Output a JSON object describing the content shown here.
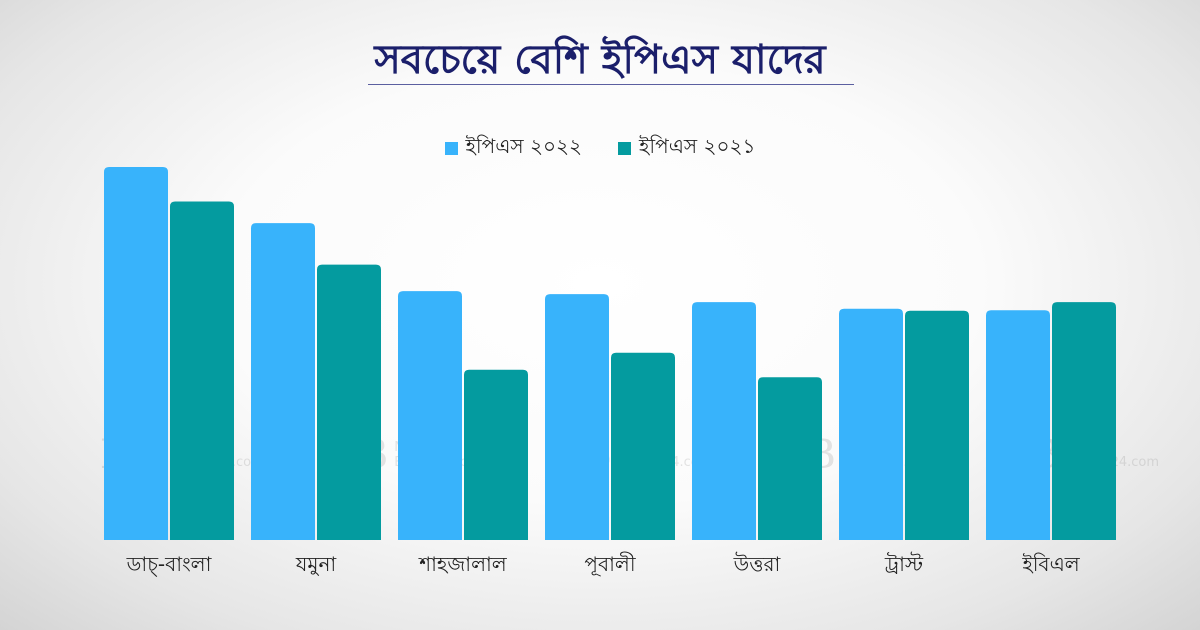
{
  "title": "সবচেয়ে বেশি ইপিএস যাদের",
  "watermark": {
    "mark": "NB",
    "line1": "News",
    "line2": "Bangla24.com"
  },
  "colors": {
    "series_2022": "#38b3fb",
    "series_2021": "#049b9f"
  },
  "chart_data": {
    "type": "bar",
    "title": "সবচেয়ে বেশি ইপিএস যাদের",
    "categories": [
      "ডাচ্-বাংলা",
      "যমুনা",
      "শাহজালাল",
      "পূবালী",
      "উত্তরা",
      "ট্রাস্ট",
      "ইবিএল"
    ],
    "series": [
      {
        "name": "ইপিএস ২০২২",
        "values": [
          7.45,
          6.33,
          4.97,
          4.91,
          4.75,
          4.62,
          4.59
        ]
      },
      {
        "name": "ইপিএস ২০২১",
        "values": [
          6.76,
          5.5,
          3.4,
          3.74,
          3.25,
          4.58,
          4.75
        ]
      }
    ],
    "xlabel": "",
    "ylabel": "",
    "ylim": [
      0,
      7.45
    ],
    "grid": false,
    "legend": "top-center"
  }
}
